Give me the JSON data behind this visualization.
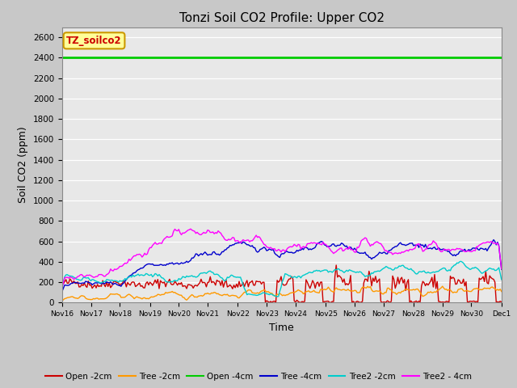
{
  "title": "Tonzi Soil CO2 Profile: Upper CO2",
  "xlabel": "Time",
  "ylabel": "Soil CO2 (ppm)",
  "ylim": [
    0,
    2700
  ],
  "yticks": [
    0,
    200,
    400,
    600,
    800,
    1000,
    1200,
    1400,
    1600,
    1800,
    2000,
    2200,
    2400,
    2600
  ],
  "fig_facecolor": "#c8c8c8",
  "ax_facecolor": "#e8e8e8",
  "title_fontsize": 11,
  "label_fontsize": 9,
  "tick_fontsize": 7.5,
  "series": {
    "Open -2cm": {
      "color": "#cc0000",
      "lw": 1.0
    },
    "Tree -2cm": {
      "color": "#ff9900",
      "lw": 1.0
    },
    "Open -4cm": {
      "color": "#00cc00",
      "lw": 2.0
    },
    "Tree -4cm": {
      "color": "#0000cc",
      "lw": 1.0
    },
    "Tree2 -2cm": {
      "color": "#00cccc",
      "lw": 1.0
    },
    "Tree2 -4cm": {
      "color": "#ff00ff",
      "lw": 1.0
    }
  },
  "legend_label": "TZ_soilco2",
  "legend_label_color": "#cc0000",
  "legend_box_facecolor": "#ffff99",
  "legend_box_edgecolor": "#cc9900",
  "num_points": 336,
  "open4cm_value": 2400,
  "x_tick_labels": [
    "Nov 16",
    "Nov 17",
    "Nov 18",
    "Nov 19",
    "Nov 20",
    "Nov 21",
    "Nov 22",
    "Nov 23",
    "Nov 24",
    "Nov 25",
    "Nov 26",
    "Nov 27",
    "Nov 28",
    "Nov 29",
    "Nov 30",
    "Dec 1"
  ]
}
